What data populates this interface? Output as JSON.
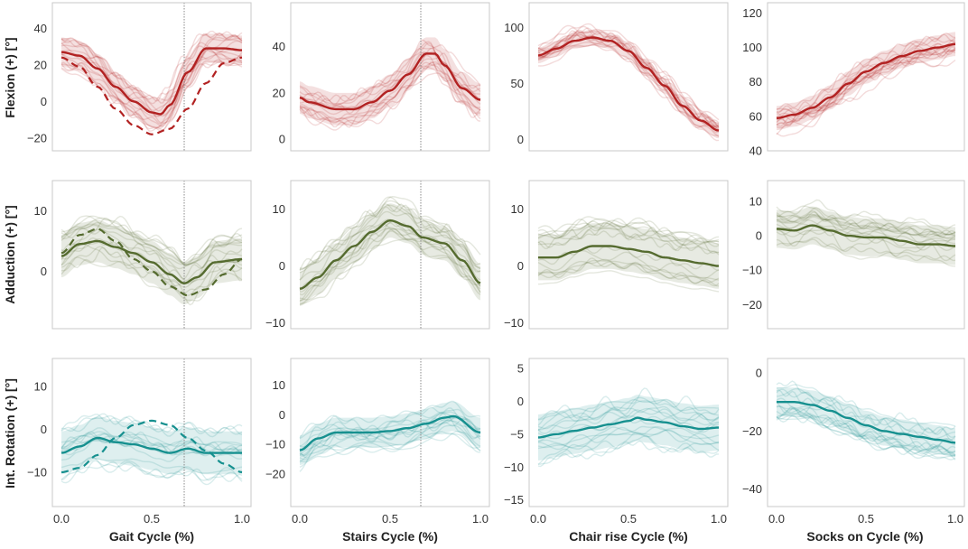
{
  "figure": {
    "row_labels": [
      "Flexion (+) [°]",
      "Adduction (+) [°]",
      "Int. Rotation (+) [°]"
    ],
    "col_labels": [
      "Gait Cycle (%)",
      "Stairs Cycle (%)",
      "Chair rise Cycle (%)",
      "Socks on Cycle (%)"
    ],
    "x_ticks": [
      "0.0",
      "0.5",
      "1.0"
    ]
  },
  "colors": {
    "flexion": "#b22222",
    "adduction": "#556b2f",
    "rotation": "#16908f",
    "vline": "#888888"
  },
  "chart_data": [
    {
      "type": "line",
      "row": 0,
      "col": 0,
      "title": "",
      "xlabel": "",
      "ylabel": "Flexion (+) [°]",
      "xlim": [
        0,
        1
      ],
      "ylim": [
        -27,
        54
      ],
      "yticks": [
        -20,
        0,
        20,
        40
      ],
      "yticklabels": [
        "−20",
        "0",
        "20",
        "40"
      ],
      "vline": 0.68,
      "band_halfwidth": 8,
      "series": [
        {
          "name": "mean",
          "x": [
            0,
            0.1,
            0.2,
            0.3,
            0.4,
            0.5,
            0.55,
            0.6,
            0.7,
            0.8,
            0.9,
            1.0
          ],
          "y": [
            27,
            25,
            18,
            8,
            0,
            -6,
            -7,
            -2,
            16,
            29,
            29,
            28
          ]
        },
        {
          "name": "reference",
          "x": [
            0,
            0.1,
            0.2,
            0.3,
            0.4,
            0.5,
            0.6,
            0.7,
            0.8,
            0.9,
            1.0
          ],
          "y": [
            24,
            19,
            8,
            -4,
            -13,
            -18,
            -15,
            -4,
            10,
            21,
            24
          ]
        }
      ]
    },
    {
      "type": "line",
      "row": 0,
      "col": 1,
      "title": "",
      "xlabel": "",
      "ylabel": "",
      "xlim": [
        0,
        1
      ],
      "ylim": [
        -5,
        59
      ],
      "yticks": [
        0,
        20,
        40
      ],
      "yticklabels": [
        "0",
        "20",
        "40"
      ],
      "vline": 0.67,
      "band_halfwidth": 7,
      "series": [
        {
          "name": "mean",
          "x": [
            0,
            0.05,
            0.2,
            0.3,
            0.4,
            0.5,
            0.6,
            0.7,
            0.75,
            0.8,
            0.9,
            1.0
          ],
          "y": [
            18,
            16,
            13,
            13,
            16,
            21,
            28,
            37,
            37,
            32,
            22,
            17
          ]
        }
      ]
    },
    {
      "type": "line",
      "row": 0,
      "col": 2,
      "title": "",
      "xlabel": "",
      "ylabel": "",
      "xlim": [
        0,
        1
      ],
      "ylim": [
        -10,
        122
      ],
      "yticks": [
        0,
        50,
        100
      ],
      "yticklabels": [
        "0",
        "50",
        "100"
      ],
      "vline": null,
      "band_halfwidth": 7,
      "series": [
        {
          "name": "mean",
          "x": [
            0,
            0.1,
            0.2,
            0.3,
            0.4,
            0.5,
            0.6,
            0.7,
            0.8,
            0.9,
            1.0
          ],
          "y": [
            75,
            81,
            88,
            91,
            88,
            79,
            64,
            48,
            30,
            17,
            8
          ]
        }
      ]
    },
    {
      "type": "line",
      "row": 0,
      "col": 3,
      "title": "",
      "xlabel": "",
      "ylabel": "",
      "xlim": [
        0,
        1
      ],
      "ylim": [
        40,
        126
      ],
      "yticks": [
        40,
        60,
        80,
        100,
        120
      ],
      "yticklabels": [
        "40",
        "60",
        "80",
        "100",
        "120"
      ],
      "vline": null,
      "band_halfwidth": 7,
      "series": [
        {
          "name": "mean",
          "x": [
            0,
            0.1,
            0.2,
            0.3,
            0.4,
            0.5,
            0.6,
            0.7,
            0.8,
            0.9,
            1.0
          ],
          "y": [
            59,
            61,
            65,
            71,
            79,
            86,
            91,
            95,
            98,
            100,
            102
          ]
        }
      ]
    },
    {
      "type": "line",
      "row": 1,
      "col": 0,
      "title": "",
      "xlabel": "",
      "ylabel": "Adduction (+) [°]",
      "xlim": [
        0,
        1
      ],
      "ylim": [
        -9.5,
        15
      ],
      "yticks": [
        0,
        10
      ],
      "yticklabels": [
        "0",
        "10"
      ],
      "vline": 0.68,
      "band_halfwidth": 3.5,
      "series": [
        {
          "name": "mean",
          "x": [
            0,
            0.1,
            0.2,
            0.3,
            0.4,
            0.5,
            0.6,
            0.68,
            0.75,
            0.85,
            1.0
          ],
          "y": [
            2.5,
            4.5,
            5,
            4,
            3,
            1.5,
            -0.5,
            -2,
            -1,
            1.5,
            2
          ]
        },
        {
          "name": "reference",
          "x": [
            0,
            0.1,
            0.2,
            0.3,
            0.4,
            0.5,
            0.6,
            0.7,
            0.8,
            0.9,
            1.0
          ],
          "y": [
            3,
            6,
            7,
            5,
            2,
            0,
            -2.5,
            -4,
            -3,
            -0.5,
            2
          ]
        }
      ]
    },
    {
      "type": "line",
      "row": 1,
      "col": 1,
      "title": "",
      "xlabel": "",
      "ylabel": "",
      "xlim": [
        0,
        1
      ],
      "ylim": [
        -11,
        15
      ],
      "yticks": [
        -10,
        0,
        10
      ],
      "yticklabels": [
        "−10",
        "0",
        "10"
      ],
      "vline": 0.67,
      "band_halfwidth": 3,
      "series": [
        {
          "name": "mean",
          "x": [
            0,
            0.1,
            0.2,
            0.3,
            0.4,
            0.5,
            0.6,
            0.68,
            0.8,
            0.9,
            1.0
          ],
          "y": [
            -4,
            -2,
            1,
            3.5,
            6,
            8,
            7,
            5,
            4,
            1,
            -3
          ]
        }
      ]
    },
    {
      "type": "line",
      "row": 1,
      "col": 2,
      "title": "",
      "xlabel": "",
      "ylabel": "",
      "xlim": [
        0,
        1
      ],
      "ylim": [
        -11,
        15
      ],
      "yticks": [
        -10,
        0,
        10
      ],
      "yticklabels": [
        "−10",
        "0",
        "10"
      ],
      "vline": null,
      "band_halfwidth": 4,
      "series": [
        {
          "name": "mean",
          "x": [
            0,
            0.1,
            0.2,
            0.3,
            0.4,
            0.5,
            0.6,
            0.7,
            0.8,
            0.9,
            1.0
          ],
          "y": [
            1.5,
            1.5,
            2.5,
            3.5,
            3.5,
            3,
            2.5,
            1.5,
            1,
            0.5,
            0
          ]
        }
      ]
    },
    {
      "type": "line",
      "row": 1,
      "col": 3,
      "title": "",
      "xlabel": "",
      "ylabel": "",
      "xlim": [
        0,
        1
      ],
      "ylim": [
        -27,
        16
      ],
      "yticks": [
        -20,
        -10,
        0,
        10
      ],
      "yticklabels": [
        "−20",
        "−10",
        "0",
        "10"
      ],
      "vline": null,
      "band_halfwidth": 5.5,
      "series": [
        {
          "name": "mean",
          "x": [
            0,
            0.1,
            0.2,
            0.3,
            0.4,
            0.5,
            0.6,
            0.7,
            0.8,
            0.9,
            1.0
          ],
          "y": [
            2,
            1.5,
            3,
            1.5,
            0,
            -0.5,
            -0.5,
            -1.5,
            -2.5,
            -2.5,
            -3
          ]
        }
      ]
    },
    {
      "type": "line",
      "row": 2,
      "col": 0,
      "title": "",
      "xlabel": "",
      "ylabel": "Int. Rotation (+) [°]",
      "xlim": [
        0,
        1
      ],
      "ylim": [
        -18,
        16.5
      ],
      "yticks": [
        -10,
        0,
        10
      ],
      "yticklabels": [
        "−10",
        "0",
        "10"
      ],
      "vline": 0.68,
      "band_halfwidth": 5,
      "series": [
        {
          "name": "mean",
          "x": [
            0,
            0.1,
            0.2,
            0.3,
            0.4,
            0.5,
            0.6,
            0.7,
            0.8,
            0.9,
            1.0
          ],
          "y": [
            -5.5,
            -4,
            -2,
            -3,
            -3.5,
            -4.5,
            -5.5,
            -4.5,
            -5.5,
            -5.5,
            -5.5
          ]
        },
        {
          "name": "reference",
          "x": [
            0,
            0.1,
            0.2,
            0.3,
            0.4,
            0.5,
            0.6,
            0.7,
            0.8,
            0.9,
            1.0
          ],
          "y": [
            -10,
            -9,
            -6,
            -2,
            1,
            2,
            1,
            -2,
            -5,
            -8,
            -10
          ]
        }
      ]
    },
    {
      "type": "line",
      "row": 2,
      "col": 1,
      "title": "",
      "xlabel": "",
      "ylabel": "",
      "xlim": [
        0,
        1
      ],
      "ylim": [
        -31,
        19
      ],
      "yticks": [
        -20,
        -10,
        0,
        10
      ],
      "yticklabels": [
        "−20",
        "−10",
        "0",
        "10"
      ],
      "vline": 0.67,
      "band_halfwidth": 5,
      "series": [
        {
          "name": "mean",
          "x": [
            0,
            0.1,
            0.2,
            0.3,
            0.4,
            0.5,
            0.6,
            0.7,
            0.8,
            0.85,
            1.0
          ],
          "y": [
            -12,
            -8,
            -6,
            -6,
            -6,
            -5.5,
            -4.5,
            -3,
            -1,
            -0.5,
            -6
          ]
        }
      ]
    },
    {
      "type": "line",
      "row": 2,
      "col": 2,
      "title": "",
      "xlabel": "",
      "ylabel": "",
      "xlim": [
        0,
        1
      ],
      "ylim": [
        -16,
        6.5
      ],
      "yticks": [
        -15,
        -10,
        -5,
        0,
        5
      ],
      "yticklabels": [
        "−15",
        "−10",
        "−5",
        "0",
        "5"
      ],
      "vline": null,
      "band_halfwidth": 3.5,
      "series": [
        {
          "name": "mean",
          "x": [
            0,
            0.1,
            0.2,
            0.3,
            0.4,
            0.5,
            0.55,
            0.6,
            0.7,
            0.8,
            0.9,
            1.0
          ],
          "y": [
            -5.5,
            -5,
            -4.5,
            -4,
            -3.5,
            -3,
            -2.5,
            -2.8,
            -3.2,
            -3.8,
            -4.2,
            -4
          ]
        }
      ]
    },
    {
      "type": "line",
      "row": 2,
      "col": 3,
      "title": "",
      "xlabel": "",
      "ylabel": "",
      "xlim": [
        0,
        1
      ],
      "ylim": [
        -46,
        5
      ],
      "yticks": [
        -40,
        -20,
        0
      ],
      "yticklabels": [
        "−40",
        "−20",
        "0"
      ],
      "vline": null,
      "band_halfwidth": 5,
      "series": [
        {
          "name": "mean",
          "x": [
            0,
            0.1,
            0.2,
            0.3,
            0.4,
            0.5,
            0.6,
            0.7,
            0.8,
            0.9,
            1.0
          ],
          "y": [
            -10,
            -10,
            -11,
            -13,
            -15.5,
            -18,
            -20,
            -21,
            -22,
            -23,
            -24
          ]
        }
      ]
    }
  ]
}
